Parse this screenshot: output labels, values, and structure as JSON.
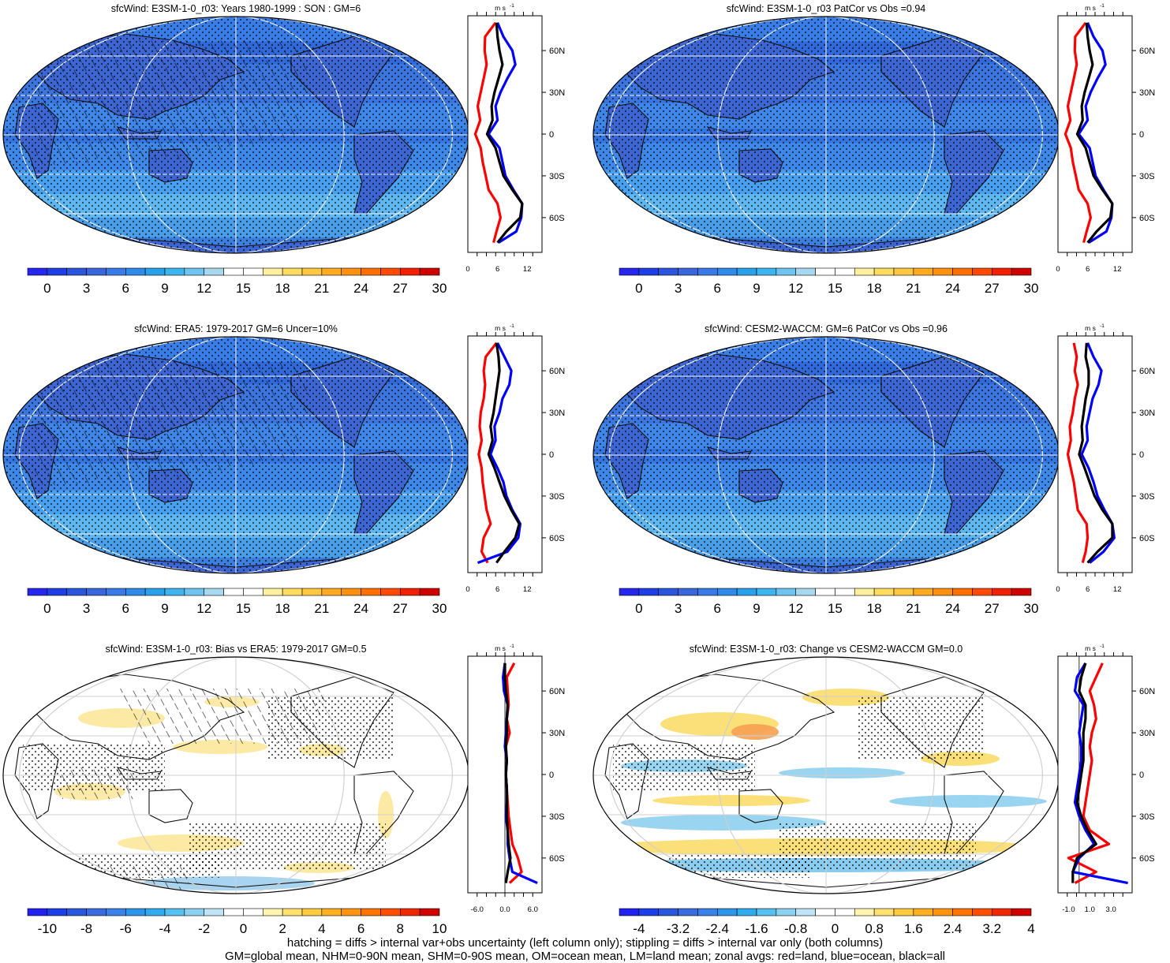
{
  "panels": [
    {
      "title": "sfcWind: E3SM-1-0_r03: Years 1980-1999 : SON : GM=6",
      "kind": "abs",
      "hatch": "full",
      "stipple": "full",
      "colorbar_ticks": [
        "0",
        "3",
        "6",
        "9",
        "12",
        "15",
        "18",
        "21",
        "24",
        "27",
        "30"
      ]
    },
    {
      "title": "sfcWind: E3SM-1-0_r03 PatCor vs Obs =0.94",
      "kind": "abs",
      "hatch": "none",
      "stipple": "full",
      "colorbar_ticks": [
        "0",
        "3",
        "6",
        "9",
        "12",
        "15",
        "18",
        "21",
        "24",
        "27",
        "30"
      ]
    },
    {
      "title": "sfcWind: ERA5: 1979-2017 GM=6 Uncer=10%",
      "kind": "abs",
      "hatch": "full",
      "stipple": "full",
      "colorbar_ticks": [
        "0",
        "3",
        "6",
        "9",
        "12",
        "15",
        "18",
        "21",
        "24",
        "27",
        "30"
      ]
    },
    {
      "title": "sfcWind: CESM2-WACCM: GM=6 PatCor vs Obs =0.96",
      "kind": "abs",
      "hatch": "none",
      "stipple": "full",
      "colorbar_ticks": [
        "0",
        "3",
        "6",
        "9",
        "12",
        "15",
        "18",
        "21",
        "24",
        "27",
        "30"
      ]
    },
    {
      "title": "sfcWind: E3SM-1-0_r03: Bias vs ERA5: 1979-2017  GM=0.5",
      "kind": "bias",
      "hatch": "partial",
      "stipple": "partial",
      "colorbar_ticks": [
        "-10",
        "-8",
        "-6",
        "-4",
        "-2",
        "0",
        "2",
        "4",
        "6",
        "8",
        "10"
      ]
    },
    {
      "title": "sfcWind: E3SM-1-0_r03: Change vs CESM2-WACCM GM=0.0",
      "kind": "change",
      "hatch": "none",
      "stipple": "partial",
      "colorbar_ticks": [
        "-4",
        "-3.2",
        "-2.4",
        "-1.6",
        "-0.8",
        "0",
        "0.8",
        "1.6",
        "2.4",
        "3.2",
        "4"
      ]
    }
  ],
  "profiles": [
    {
      "unit": "m s",
      "unit_exp": "-1",
      "xticks": [
        "0",
        "6",
        "12"
      ],
      "xvals": [
        0,
        6,
        12
      ],
      "xlim": [
        0,
        15
      ],
      "zero_line": false
    },
    {
      "unit": "m s",
      "unit_exp": "-1",
      "xticks": [
        "0",
        "6",
        "12"
      ],
      "xvals": [
        0,
        6,
        12
      ],
      "xlim": [
        0,
        15
      ],
      "zero_line": false
    },
    {
      "unit": "m s",
      "unit_exp": "-1",
      "xticks": [
        "0",
        "6",
        "12"
      ],
      "xvals": [
        0,
        6,
        12
      ],
      "xlim": [
        0,
        15
      ],
      "zero_line": false
    },
    {
      "unit": "m s",
      "unit_exp": "-1",
      "xticks": [
        "0",
        "6",
        "12"
      ],
      "xvals": [
        0,
        6,
        12
      ],
      "xlim": [
        0,
        15
      ],
      "zero_line": false
    },
    {
      "unit": "m s",
      "unit_exp": "-1",
      "xticks": [
        "-6.0",
        "0.0",
        "6.0"
      ],
      "xvals": [
        -6,
        0,
        6
      ],
      "xlim": [
        -8,
        8
      ],
      "zero_line": true
    },
    {
      "unit": "m s",
      "unit_exp": "-1",
      "xticks": [
        "-1.0",
        "1.0",
        "3.0"
      ],
      "xvals": [
        -1,
        1,
        3
      ],
      "xlim": [
        -2,
        5
      ],
      "zero_line": true
    }
  ],
  "lat_ticks": [
    "60N",
    "30N",
    "0",
    "30S",
    "60S"
  ],
  "lat_vals": [
    60,
    30,
    0,
    -30,
    -60
  ],
  "colorbar_abs": [
    "#2626f0",
    "#1e3fe6",
    "#2a55dc",
    "#3a66dc",
    "#3a7ae8",
    "#2f8ae8",
    "#28a0ea",
    "#3cb4ee",
    "#6ec4ee",
    "#a8d8f0",
    "#ffffff",
    "#ffffff",
    "#fff0a0",
    "#ffdc60",
    "#ffc840",
    "#ffaa20",
    "#ff9010",
    "#ff7000",
    "#ff4a00",
    "#f02000",
    "#d00000"
  ],
  "colorbar_div": [
    "#2020f0",
    "#1c40e6",
    "#2a58dc",
    "#3a6ce0",
    "#3a82e8",
    "#2e96ea",
    "#30acee",
    "#56c0ee",
    "#8cd2f0",
    "#c0e4f6",
    "#ffffff",
    "#ffffff",
    "#fff4b0",
    "#ffe070",
    "#ffcc40",
    "#ffb020",
    "#ff9410",
    "#ff7400",
    "#ff5000",
    "#f02800",
    "#d00000"
  ],
  "chart_data": [
    {
      "type": "line",
      "title": "sfcWind: E3SM-1-0_r03: Years 1980-1999 : SON : GM=6",
      "xlabel": "m s-1",
      "ylabel": "",
      "xlim": [
        0,
        15
      ],
      "ylim": [
        -85,
        85
      ],
      "series": [
        {
          "color": "#ff0000",
          "y": [
            80,
            70,
            60,
            50,
            40,
            30,
            20,
            10,
            0,
            -10,
            -20,
            -30,
            -40,
            -50,
            -60,
            -70,
            -78
          ],
          "x": [
            5.6,
            3.5,
            3.4,
            3.8,
            3.2,
            2.6,
            2.0,
            2.5,
            1.5,
            2.6,
            3.0,
            3.6,
            4.2,
            6.0,
            6.6,
            5.8,
            5.2
          ]
        },
        {
          "color": "#0000ff",
          "y": [
            80,
            70,
            60,
            50,
            40,
            30,
            20,
            10,
            0,
            -10,
            -20,
            -30,
            -40,
            -50,
            -60,
            -70,
            -78
          ],
          "x": [
            6.0,
            7.2,
            9.0,
            9.6,
            8.0,
            6.6,
            5.6,
            6.0,
            4.2,
            6.4,
            7.0,
            7.6,
            9.2,
            11.0,
            10.8,
            9.8,
            6.2
          ]
        },
        {
          "color": "#000000",
          "y": [
            80,
            70,
            60,
            50,
            40,
            30,
            20,
            10,
            0,
            -10,
            -20,
            -30,
            -40,
            -50,
            -60,
            -70,
            -78
          ],
          "x": [
            5.8,
            6.0,
            6.4,
            7.0,
            6.2,
            5.4,
            4.8,
            5.0,
            3.9,
            5.6,
            6.4,
            7.2,
            9.0,
            11.0,
            10.6,
            7.8,
            6.0
          ]
        }
      ]
    },
    {
      "type": "line",
      "title": "sfcWind: E3SM-1-0_r03 PatCor vs Obs =0.94",
      "xlabel": "m s-1",
      "ylabel": "",
      "xlim": [
        0,
        15
      ],
      "ylim": [
        -85,
        85
      ],
      "series": [
        {
          "color": "#ff0000",
          "y": [
            80,
            70,
            60,
            50,
            40,
            30,
            20,
            10,
            0,
            -10,
            -20,
            -30,
            -40,
            -50,
            -60,
            -70,
            -78
          ],
          "x": [
            5.6,
            3.5,
            3.4,
            3.8,
            3.2,
            2.6,
            2.0,
            2.5,
            1.5,
            2.6,
            3.0,
            3.6,
            4.2,
            6.0,
            6.6,
            5.8,
            5.2
          ]
        },
        {
          "color": "#0000ff",
          "y": [
            80,
            70,
            60,
            50,
            40,
            30,
            20,
            10,
            0,
            -10,
            -20,
            -30,
            -40,
            -50,
            -60,
            -70,
            -78
          ],
          "x": [
            6.0,
            7.2,
            9.0,
            9.6,
            8.0,
            6.6,
            5.6,
            6.0,
            4.2,
            6.4,
            7.0,
            7.6,
            9.2,
            11.0,
            10.8,
            9.8,
            6.2
          ]
        },
        {
          "color": "#000000",
          "y": [
            80,
            70,
            60,
            50,
            40,
            30,
            20,
            10,
            0,
            -10,
            -20,
            -30,
            -40,
            -50,
            -60,
            -70,
            -78
          ],
          "x": [
            5.8,
            6.0,
            6.4,
            7.0,
            6.2,
            5.4,
            4.8,
            5.0,
            3.9,
            5.6,
            6.4,
            7.2,
            9.0,
            11.0,
            10.6,
            7.8,
            6.0
          ]
        }
      ]
    },
    {
      "type": "line",
      "title": "sfcWind: ERA5: 1979-2017 GM=6 Uncer=10%",
      "xlabel": "m s-1",
      "ylabel": "",
      "xlim": [
        0,
        15
      ],
      "ylim": [
        -85,
        85
      ],
      "series": [
        {
          "color": "#ff0000",
          "y": [
            80,
            70,
            60,
            50,
            40,
            30,
            20,
            10,
            0,
            -10,
            -20,
            -30,
            -40,
            -50,
            -60,
            -70,
            -78
          ],
          "x": [
            5.8,
            3.6,
            3.2,
            3.5,
            3.2,
            2.6,
            2.4,
            2.8,
            2.2,
            2.8,
            3.0,
            3.4,
            3.8,
            4.6,
            3.2,
            2.8,
            4.0
          ]
        },
        {
          "color": "#0000ff",
          "y": [
            80,
            70,
            60,
            50,
            40,
            30,
            20,
            10,
            0,
            -10,
            -20,
            -30,
            -40,
            -50,
            -60,
            -70,
            -78
          ],
          "x": [
            6.0,
            7.4,
            8.8,
            8.4,
            7.0,
            6.4,
            5.4,
            5.6,
            4.6,
            6.0,
            7.2,
            7.8,
            9.0,
            10.6,
            10.2,
            8.0,
            2.0
          ]
        },
        {
          "color": "#000000",
          "y": [
            80,
            70,
            60,
            50,
            40,
            30,
            20,
            10,
            0,
            -10,
            -20,
            -30,
            -40,
            -50,
            -60,
            -70,
            -78
          ],
          "x": [
            5.8,
            6.2,
            6.4,
            6.0,
            5.6,
            5.2,
            4.6,
            5.0,
            4.2,
            5.4,
            6.4,
            7.4,
            8.8,
            10.4,
            9.6,
            7.4,
            5.8
          ]
        }
      ]
    },
    {
      "type": "line",
      "title": "sfcWind: CESM2-WACCM: GM=6 PatCor vs Obs =0.96",
      "xlabel": "m s-1",
      "ylabel": "",
      "xlim": [
        0,
        15
      ],
      "ylim": [
        -85,
        85
      ],
      "series": [
        {
          "color": "#ff0000",
          "y": [
            80,
            70,
            60,
            50,
            40,
            30,
            20,
            10,
            0,
            -10,
            -20,
            -30,
            -40,
            -50,
            -60,
            -70,
            -78
          ],
          "x": [
            3.2,
            3.8,
            3.4,
            4.0,
            3.4,
            3.0,
            2.4,
            2.6,
            2.0,
            2.6,
            3.2,
            3.6,
            4.0,
            5.8,
            6.0,
            5.6,
            5.0
          ]
        },
        {
          "color": "#0000ff",
          "y": [
            80,
            70,
            60,
            50,
            40,
            30,
            20,
            10,
            0,
            -10,
            -20,
            -30,
            -40,
            -50,
            -60,
            -70,
            -78
          ],
          "x": [
            6.0,
            7.2,
            8.8,
            8.2,
            7.0,
            6.4,
            5.8,
            6.0,
            4.8,
            6.2,
            7.2,
            8.0,
            9.4,
            11.0,
            11.4,
            9.2,
            6.4
          ]
        },
        {
          "color": "#000000",
          "y": [
            80,
            70,
            60,
            50,
            40,
            30,
            20,
            10,
            0,
            -10,
            -20,
            -30,
            -40,
            -50,
            -60,
            -70,
            -78
          ],
          "x": [
            5.8,
            5.6,
            6.2,
            6.2,
            5.6,
            5.2,
            4.8,
            5.0,
            4.3,
            5.4,
            6.4,
            7.4,
            9.0,
            11.0,
            11.0,
            8.0,
            6.0
          ]
        }
      ]
    },
    {
      "type": "line",
      "title": "sfcWind: E3SM-1-0_r03: Bias vs ERA5: 1979-2017  GM=0.5",
      "xlabel": "m s-1",
      "ylabel": "",
      "xlim": [
        -8,
        8
      ],
      "ylim": [
        -85,
        85
      ],
      "series": [
        {
          "color": "#ff0000",
          "y": [
            80,
            70,
            60,
            50,
            40,
            30,
            20,
            10,
            0,
            -10,
            -20,
            -30,
            -40,
            -50,
            -60,
            -70,
            -78
          ],
          "x": [
            2.0,
            0.4,
            0.6,
            0.8,
            0.4,
            1.0,
            0.2,
            0.4,
            0.2,
            0.4,
            0.6,
            0.8,
            1.2,
            1.6,
            2.8,
            3.6,
            1.0
          ]
        },
        {
          "color": "#0000ff",
          "y": [
            80,
            70,
            60,
            50,
            40,
            30,
            20,
            10,
            0,
            -10,
            -20,
            -30,
            -40,
            -50,
            -60,
            -70,
            -78
          ],
          "x": [
            0.0,
            -0.4,
            -0.2,
            0.6,
            0.4,
            0.2,
            0.0,
            0.4,
            0.2,
            0.4,
            0.4,
            0.2,
            0.6,
            0.6,
            1.0,
            1.6,
            7.0
          ]
        },
        {
          "color": "#000000",
          "y": [
            80,
            70,
            60,
            50,
            40,
            30,
            20,
            10,
            0,
            -10,
            -20,
            -30,
            -40,
            -50,
            -60,
            -70,
            -78
          ],
          "x": [
            0.0,
            0.0,
            0.2,
            0.6,
            0.4,
            0.4,
            0.2,
            0.4,
            0.2,
            0.4,
            0.4,
            0.4,
            0.6,
            0.8,
            1.2,
            0.6,
            0.2
          ]
        }
      ]
    },
    {
      "type": "line",
      "title": "sfcWind: E3SM-1-0_r03: Change vs CESM2-WACCM GM=0.0",
      "xlabel": "m s-1",
      "ylabel": "",
      "xlim": [
        -2,
        5
      ],
      "ylim": [
        -85,
        85
      ],
      "series": [
        {
          "color": "#ff0000",
          "y": [
            80,
            70,
            60,
            50,
            40,
            30,
            20,
            10,
            0,
            -10,
            -20,
            -30,
            -40,
            -50,
            -60,
            -70,
            -78
          ],
          "x": [
            2.2,
            1.6,
            1.0,
            1.4,
            1.6,
            1.2,
            1.0,
            1.2,
            1.0,
            0.8,
            0.6,
            0.4,
            1.0,
            2.8,
            -1.0,
            1.6,
            -0.4
          ]
        },
        {
          "color": "#0000ff",
          "y": [
            80,
            70,
            60,
            50,
            40,
            30,
            20,
            10,
            0,
            -10,
            -20,
            -30,
            -40,
            -50,
            -60,
            -70,
            -78
          ],
          "x": [
            0.6,
            -0.2,
            -0.4,
            0.4,
            0.2,
            0.0,
            0.2,
            0.2,
            0.0,
            -0.2,
            -0.4,
            0.0,
            0.6,
            1.4,
            0.0,
            -0.6,
            4.6
          ]
        },
        {
          "color": "#000000",
          "y": [
            80,
            70,
            60,
            50,
            40,
            30,
            20,
            10,
            0,
            -10,
            -20,
            -30,
            -40,
            -50,
            -60,
            -70,
            -78
          ],
          "x": [
            0.6,
            0.2,
            0.0,
            0.6,
            0.6,
            0.4,
            0.4,
            0.4,
            0.2,
            0.0,
            -0.2,
            0.2,
            0.8,
            1.6,
            -0.2,
            -0.6,
            -0.6
          ]
        }
      ]
    }
  ],
  "captions": [
    "hatching = diffs > internal var+obs uncertainty (left column only); stippling = diffs > internal var only (both columns)",
    "GM=global mean, NHM=0-90N mean, SHM=0-90S mean, OM=ocean mean, LM=land mean; zonal avgs: red=land, blue=ocean, black=all"
  ]
}
